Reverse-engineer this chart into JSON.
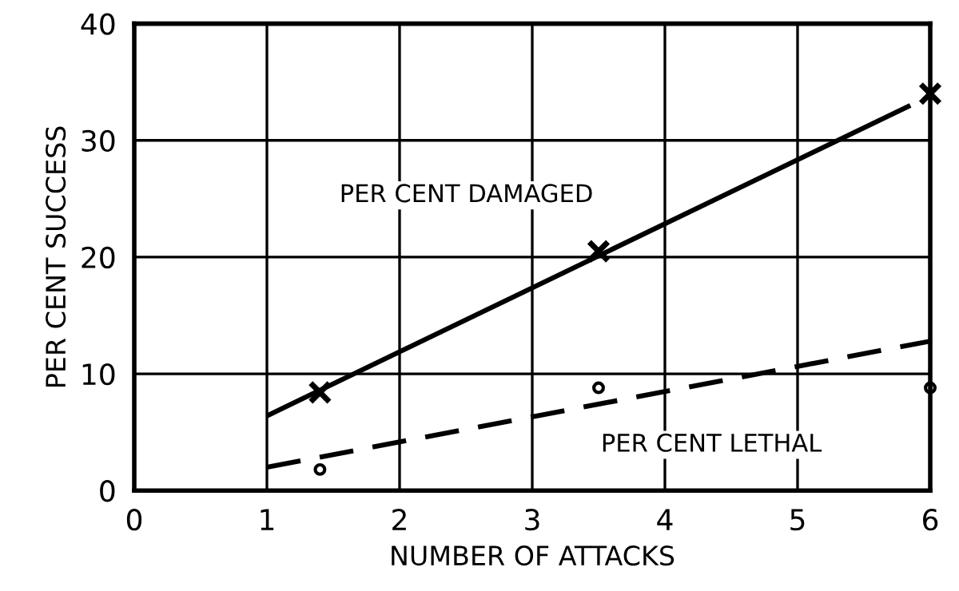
{
  "chart_data": {
    "type": "scatter",
    "xlabel": "NUMBER OF ATTACKS",
    "ylabel": "PER CENT SUCCESS",
    "xlim": [
      0,
      6
    ],
    "ylim": [
      0,
      40
    ],
    "xticks": [
      0,
      1,
      2,
      3,
      4,
      5,
      6
    ],
    "yticks": [
      0,
      10,
      20,
      30,
      40
    ],
    "grid": true,
    "legend": false,
    "series": [
      {
        "marker": "cross",
        "color": "#000000",
        "x": [
          1.4,
          3.5,
          6
        ],
        "values": [
          8.4,
          20.5,
          34
        ]
      },
      {
        "type": "line",
        "name": "PER CENT DAMAGED",
        "line_style": "solid",
        "marker": "none",
        "color": "#000000",
        "x": [
          1,
          5.85
        ],
        "values": [
          6.4,
          33
        ]
      },
      {
        "marker": "circle",
        "color": "#000000",
        "x": [
          1.4,
          3.5,
          6
        ],
        "values": [
          1.8,
          8.8,
          8.8
        ]
      },
      {
        "type": "line",
        "name": "PER CENT LETHAL",
        "line_style": "dashed",
        "marker": "none",
        "color": "#000000",
        "x": [
          1,
          6
        ],
        "values": [
          2,
          12.8
        ]
      }
    ]
  }
}
